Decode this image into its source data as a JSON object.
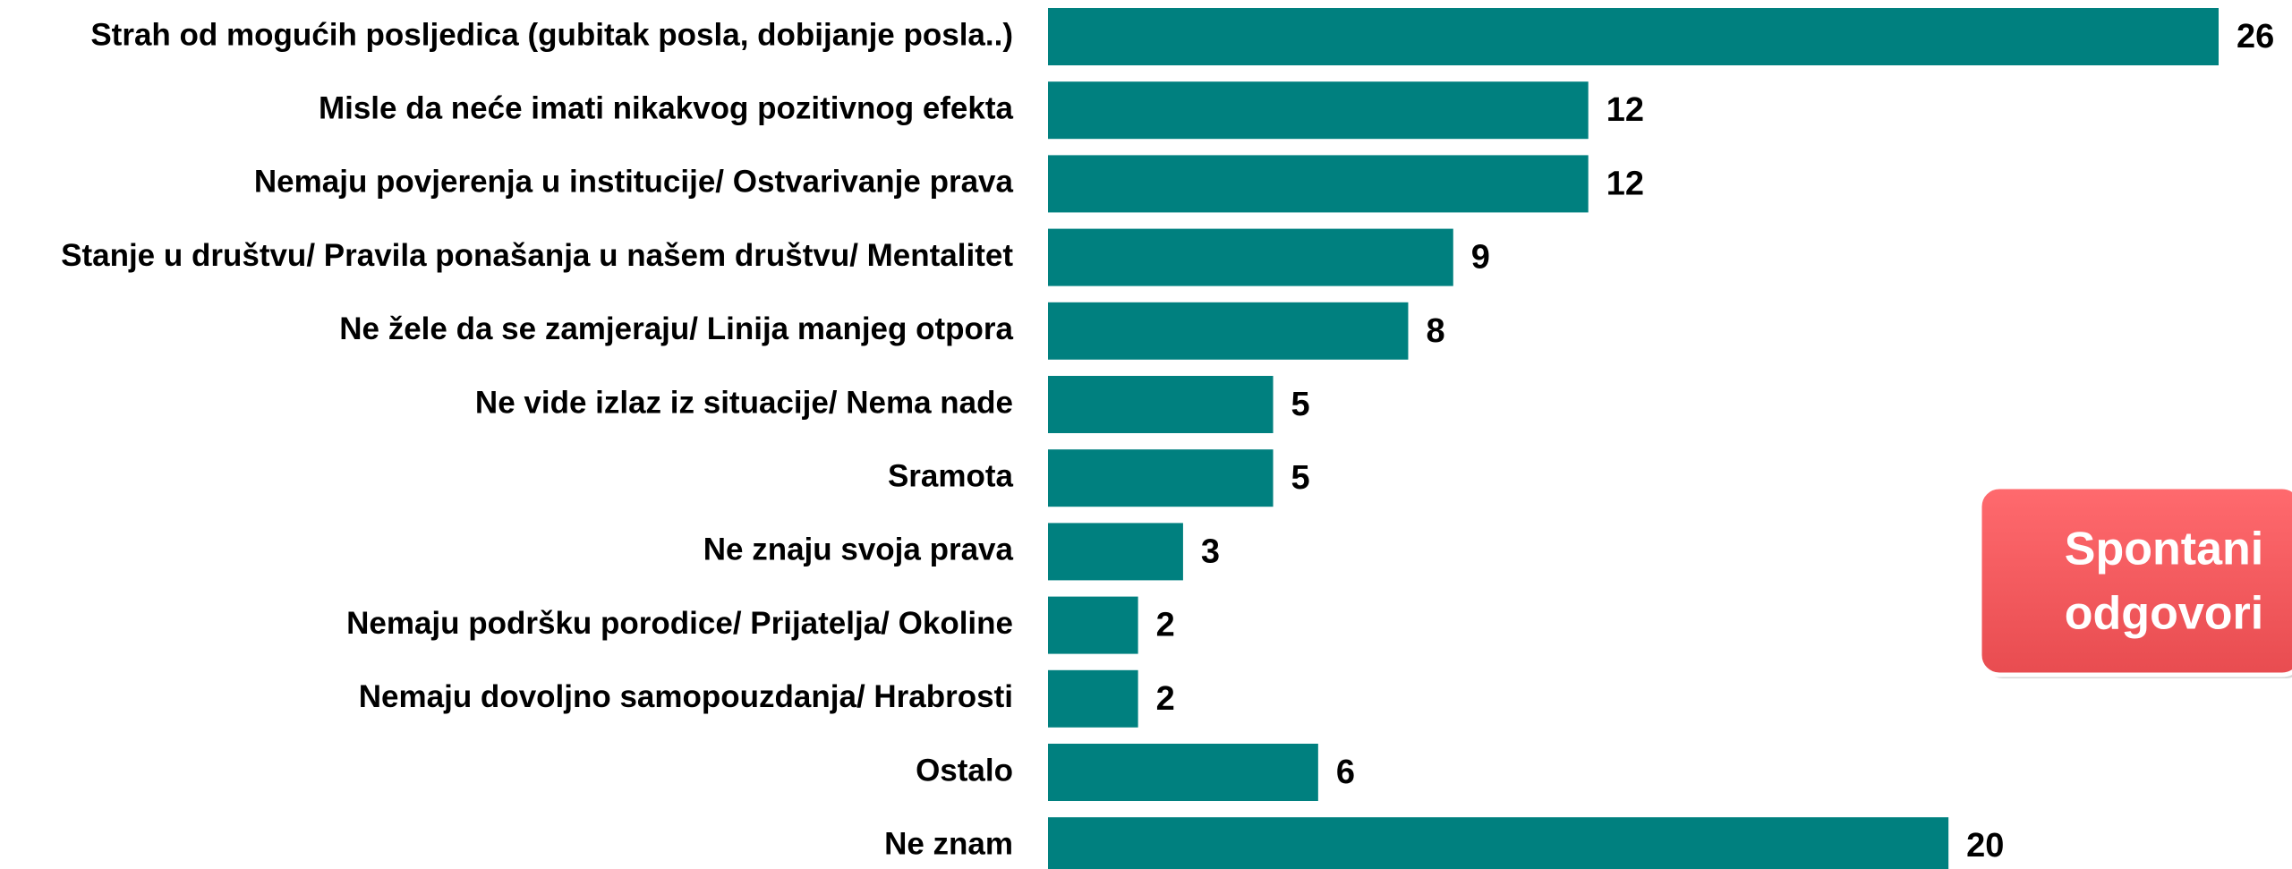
{
  "chart_data": {
    "type": "bar",
    "orientation": "horizontal",
    "categories": [
      "Strah od mogućih posljedica (gubitak posla, dobijanje posla..)",
      "Misle da neće imati nikakvog pozitivnog efekta",
      "Nemaju povjerenja u institucije/ Ostvarivanje prava",
      "Stanje u društvu/ Pravila ponašanja u našem društvu/ Mentalitet",
      "Ne žele da se zamjeraju/ Linija manjeg otpora",
      "Ne vide izlaz iz situacije/ Nema nade",
      "Sramota",
      "Ne znaju svoja prava",
      "Nemaju podršku porodice/ Prijatelja/ Okoline",
      "Nemaju dovoljno samopouzdanja/ Hrabrosti",
      "Ostalo",
      "Ne znam"
    ],
    "values": [
      26,
      12,
      12,
      9,
      8,
      5,
      5,
      3,
      2,
      2,
      6,
      20
    ],
    "color": "#00807f",
    "annotation": [
      "Spontani",
      "odgovori"
    ],
    "annotation_color": "#f4585c"
  }
}
